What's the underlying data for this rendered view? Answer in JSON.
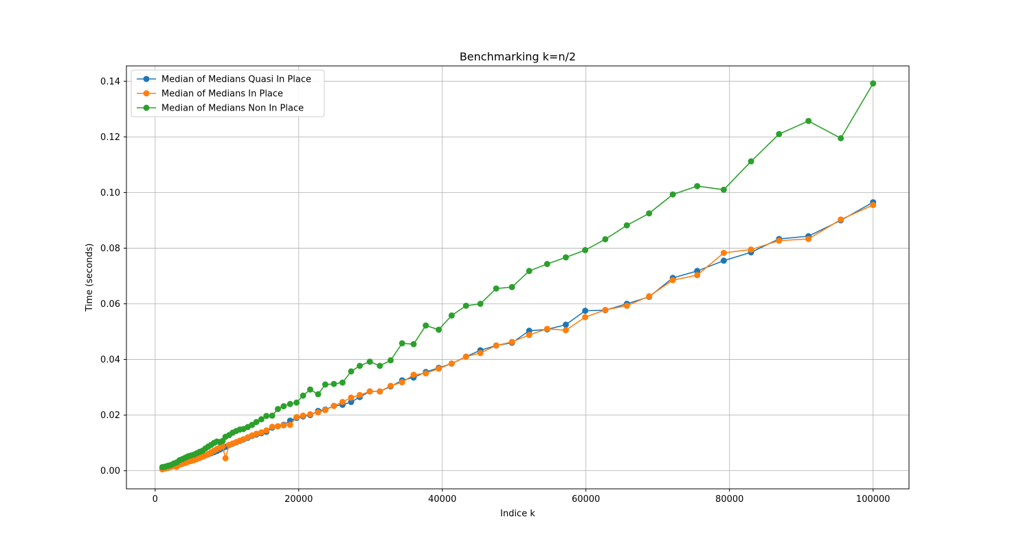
{
  "chart_data": {
    "type": "line",
    "title": "Benchmarking k=n/2",
    "xlabel": "Indice k",
    "ylabel": "Time (seconds)",
    "xlim": [
      -4000,
      105000
    ],
    "ylim": [
      -0.0065,
      0.1455
    ],
    "xticks": [
      0,
      20000,
      40000,
      60000,
      80000,
      100000
    ],
    "xtick_labels": [
      "0",
      "20000",
      "40000",
      "60000",
      "80000",
      "100000"
    ],
    "yticks": [
      0.0,
      0.02,
      0.04,
      0.06,
      0.08,
      0.1,
      0.12,
      0.14
    ],
    "ytick_labels": [
      "0.00",
      "0.02",
      "0.04",
      "0.06",
      "0.08",
      "0.10",
      "0.12",
      "0.14"
    ],
    "grid": true,
    "legend_position": "top-left",
    "x": [
      1000,
      1400,
      1800,
      2200,
      2600,
      3000,
      3400,
      3800,
      4200,
      4600,
      5000,
      5400,
      5800,
      6200,
      6600,
      7000,
      7400,
      7800,
      8200,
      8600,
      9000,
      9400,
      9800,
      10300,
      10800,
      11300,
      11800,
      12300,
      12900,
      13500,
      14100,
      14800,
      15500,
      16300,
      17100,
      17900,
      18800,
      19700,
      20600,
      21600,
      22700,
      23700,
      24900,
      26100,
      27300,
      28500,
      29900,
      31300,
      32800,
      34400,
      36000,
      37700,
      39500,
      41300,
      43300,
      45300,
      47500,
      49700,
      52100,
      54600,
      57200,
      59900,
      62700,
      65700,
      68800,
      72100,
      75500,
      79200,
      83000,
      86900,
      91000,
      95500,
      100000
    ],
    "series": [
      {
        "name": "Median of Medians Quasi In Place",
        "color": "#1f77b4",
        "values": [
          0.0008,
          0.0011,
          0.0014,
          0.0017,
          0.002,
          0.0023,
          0.0026,
          0.0029,
          0.0032,
          0.0035,
          0.0038,
          0.0041,
          0.0044,
          0.0047,
          0.0051,
          0.0055,
          0.0059,
          0.0063,
          0.0067,
          0.0071,
          0.0076,
          0.0081,
          0.0086,
          0.0092,
          0.0097,
          0.0102,
          0.0107,
          0.0112,
          0.0118,
          0.0125,
          0.013,
          0.0135,
          0.014,
          0.0155,
          0.016,
          0.0165,
          0.018,
          0.019,
          0.0195,
          0.02,
          0.0215,
          0.022,
          0.0233,
          0.0237,
          0.0247,
          0.0265,
          0.0285,
          0.0285,
          0.0303,
          0.0325,
          0.0335,
          0.0355,
          0.037,
          0.0385,
          0.041,
          0.0433,
          0.045,
          0.046,
          0.0503,
          0.0508,
          0.0525,
          0.0575,
          0.0577,
          0.06,
          0.0625,
          0.0693,
          0.0718,
          0.0755,
          0.0785,
          0.0833,
          0.0843,
          0.09,
          0.0965
        ]
      },
      {
        "name": "Median of Medians In Place",
        "color": "#ff7f0e",
        "values": [
          0.0005,
          0.0008,
          0.0011,
          0.0014,
          0.0017,
          0.0014,
          0.0022,
          0.0025,
          0.0028,
          0.0032,
          0.0035,
          0.0038,
          0.0042,
          0.0046,
          0.005,
          0.0055,
          0.006,
          0.0066,
          0.0072,
          0.0078,
          0.0083,
          0.0088,
          0.0045,
          0.0093,
          0.0098,
          0.0103,
          0.0108,
          0.0113,
          0.012,
          0.0127,
          0.0133,
          0.0138,
          0.0145,
          0.0158,
          0.016,
          0.0163,
          0.0165,
          0.0193,
          0.0198,
          0.0203,
          0.021,
          0.0218,
          0.0233,
          0.0247,
          0.0263,
          0.0272,
          0.0285,
          0.0285,
          0.0305,
          0.0318,
          0.0345,
          0.035,
          0.0367,
          0.0385,
          0.041,
          0.0423,
          0.045,
          0.0463,
          0.0488,
          0.051,
          0.0505,
          0.0552,
          0.0578,
          0.0593,
          0.0627,
          0.0685,
          0.0703,
          0.0783,
          0.0795,
          0.0827,
          0.0833,
          0.0903,
          0.0955
        ]
      },
      {
        "name": "Median of Medians Non In Place",
        "color": "#2ca02c",
        "values": [
          0.0013,
          0.0015,
          0.0018,
          0.0021,
          0.0026,
          0.003,
          0.0038,
          0.0042,
          0.0047,
          0.0052,
          0.0055,
          0.0058,
          0.0063,
          0.0068,
          0.0072,
          0.008,
          0.0087,
          0.0093,
          0.01,
          0.0105,
          0.0103,
          0.0107,
          0.0122,
          0.0128,
          0.0137,
          0.0143,
          0.0148,
          0.015,
          0.0157,
          0.0165,
          0.0175,
          0.0185,
          0.0197,
          0.0198,
          0.0222,
          0.0232,
          0.024,
          0.0245,
          0.027,
          0.0292,
          0.0275,
          0.031,
          0.0312,
          0.0317,
          0.0357,
          0.0377,
          0.0392,
          0.0377,
          0.0397,
          0.0458,
          0.0455,
          0.0522,
          0.0507,
          0.0558,
          0.0593,
          0.06,
          0.0655,
          0.066,
          0.0718,
          0.0743,
          0.0767,
          0.0793,
          0.0832,
          0.0882,
          0.0925,
          0.0993,
          0.1023,
          0.101,
          0.1112,
          0.121,
          0.1257,
          0.1195,
          0.1392
        ]
      }
    ]
  }
}
